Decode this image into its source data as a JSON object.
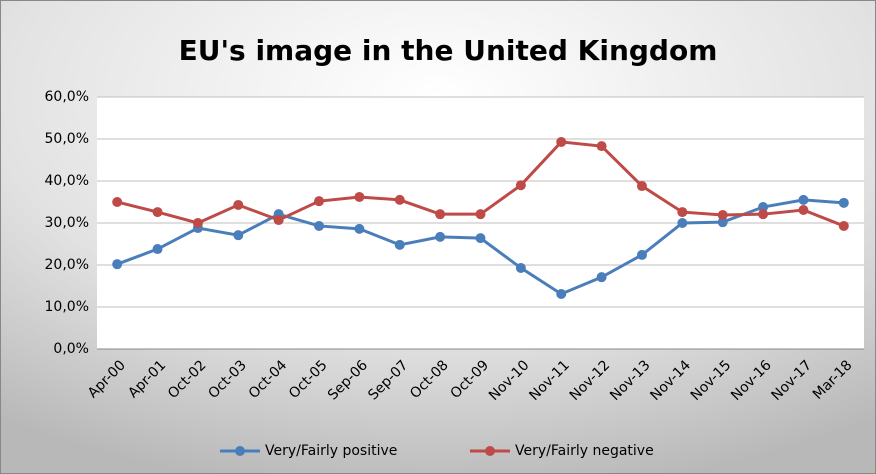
{
  "chart_data": {
    "type": "line",
    "title": "EU's image in the United Kingdom",
    "categories": [
      "Apr-00",
      "Apr-01",
      "Oct-02",
      "Oct-03",
      "Oct-04",
      "Oct-05",
      "Sep-06",
      "Sep-07",
      "Oct-08",
      "Oct-09",
      "Nov-10",
      "Nov-11",
      "Nov-12",
      "Nov-13",
      "Nov-14",
      "Nov-15",
      "Nov-16",
      "Nov-17",
      "Mar-18"
    ],
    "series": [
      {
        "name": "Very/Fairly positive",
        "color": "#4a7ebb",
        "values": [
          20.2,
          23.8,
          28.8,
          27.1,
          32.1,
          29.3,
          28.6,
          24.8,
          26.7,
          26.4,
          19.3,
          13.1,
          17.1,
          22.4,
          30,
          30.2,
          33.8,
          35.5,
          34.8
        ]
      },
      {
        "name": "Very/Fairly negative",
        "color": "#be4b48",
        "values": [
          35,
          32.6,
          30,
          34.3,
          30.7,
          35.2,
          36.2,
          35.5,
          32.1,
          32.1,
          39,
          49.3,
          48.3,
          38.8,
          32.6,
          31.9,
          32.1,
          33.1,
          29.3
        ]
      }
    ],
    "ylim": [
      0,
      60
    ],
    "yticks": [
      {
        "value": 0,
        "label": "0,0%"
      },
      {
        "value": 10,
        "label": "10,0%"
      },
      {
        "value": 20,
        "label": "20,0%"
      },
      {
        "value": 30,
        "label": "30,0%"
      },
      {
        "value": 40,
        "label": "40,0%"
      },
      {
        "value": 50,
        "label": "50,0%"
      },
      {
        "value": 60,
        "label": "60,0%"
      }
    ],
    "grid": true,
    "legend": "bottom"
  }
}
